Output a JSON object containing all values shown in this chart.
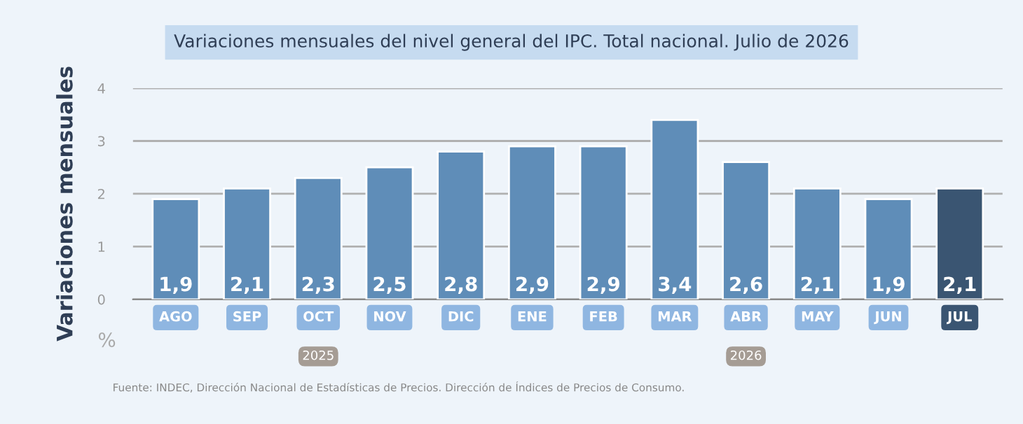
{
  "chart_data": {
    "type": "bar",
    "title": "Variaciones mensuales del nivel general del IPC. Total nacional. Julio de 2026",
    "ylabel": "Variaciones mensuales",
    "categories": [
      "AGO",
      "SEP",
      "OCT",
      "NOV",
      "DIC",
      "ENE",
      "FEB",
      "MAR",
      "ABR",
      "MAY",
      "JUN",
      "JUL"
    ],
    "values": [
      1.9,
      2.1,
      2.3,
      2.5,
      2.8,
      2.9,
      2.9,
      3.4,
      2.6,
      2.1,
      1.9,
      2.1
    ],
    "value_labels": [
      "1,9",
      "2,1",
      "2,3",
      "2,5",
      "2,8",
      "2,9",
      "2,9",
      "3,4",
      "2,6",
      "2,1",
      "1,9",
      "2,1"
    ],
    "colors": [
      "#5f8db8",
      "#5f8db8",
      "#5f8db8",
      "#5f8db8",
      "#5f8db8",
      "#5f8db8",
      "#5f8db8",
      "#5f8db8",
      "#5f8db8",
      "#5f8db8",
      "#5f8db8",
      "#3a5572"
    ],
    "ylim": [
      0,
      4
    ],
    "yticks": [
      0,
      1,
      2,
      3,
      4
    ],
    "grid": "y",
    "annotations": [
      "%",
      "2025",
      "2026",
      "Fuente: INDEC, Dirección Nacional de Estadísticas de Precios. Dirección de Índices de Precios de Consumo."
    ]
  }
}
